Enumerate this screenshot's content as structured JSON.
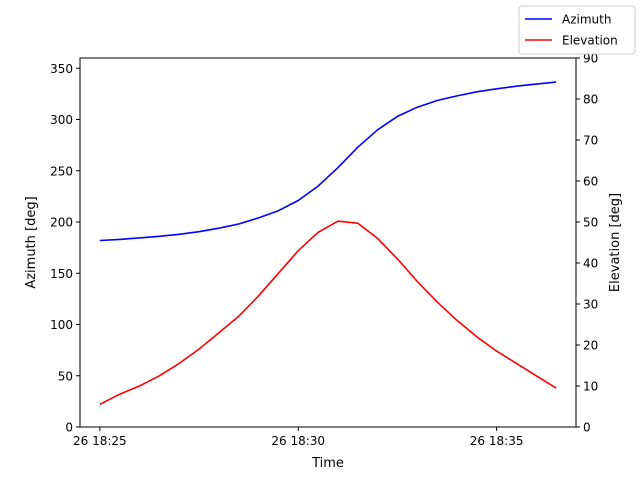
{
  "chart_data": {
    "type": "line",
    "xlabel": "Time",
    "ylabel": "Azimuth [deg]",
    "y2label": "Elevation [deg]",
    "x_ticks": [
      {
        "minute": 25,
        "label": "26 18:25"
      },
      {
        "minute": 30,
        "label": "26 18:30"
      },
      {
        "minute": 35,
        "label": "26 18:35"
      }
    ],
    "xlim_minutes": [
      24.5,
      37.0
    ],
    "ylim": [
      0,
      360
    ],
    "y2lim": [
      0,
      90
    ],
    "yticks": [
      "0",
      "50",
      "100",
      "150",
      "200",
      "250",
      "300",
      "350"
    ],
    "y2ticks": [
      "0",
      "10",
      "20",
      "30",
      "40",
      "50",
      "60",
      "70",
      "80",
      "90"
    ],
    "grid": false,
    "legend": "top-right",
    "series": [
      {
        "name": "Azimuth",
        "axis": "left",
        "color": "#0000ff",
        "x_minutes": [
          25.0,
          25.5,
          26.0,
          26.5,
          27.0,
          27.5,
          28.0,
          28.5,
          29.0,
          29.5,
          30.0,
          30.5,
          31.0,
          31.5,
          32.0,
          32.5,
          33.0,
          33.5,
          34.0,
          34.5,
          35.0,
          35.5,
          36.0,
          36.5
        ],
        "values": [
          182,
          183,
          184.5,
          186,
          188,
          190.5,
          194,
          198,
          204,
          211,
          221,
          235,
          253,
          273,
          290,
          303,
          312,
          318.5,
          323,
          327,
          330,
          332.5,
          334.5,
          336.5
        ]
      },
      {
        "name": "Elevation",
        "axis": "right",
        "color": "#ff0000",
        "x_minutes": [
          25.0,
          25.5,
          26.0,
          26.5,
          27.0,
          27.5,
          28.0,
          28.5,
          29.0,
          29.5,
          30.0,
          30.5,
          31.0,
          31.5,
          32.0,
          32.5,
          33.0,
          33.5,
          34.0,
          34.5,
          35.0,
          35.5,
          36.0,
          36.5
        ],
        "values": [
          5.5,
          8,
          10,
          12.5,
          15.5,
          19,
          23,
          27,
          32,
          37.5,
          43,
          47.5,
          50.2,
          49.7,
          46,
          41,
          35.5,
          30.5,
          26,
          22,
          18.5,
          15.5,
          12.5,
          9.5
        ]
      }
    ]
  }
}
